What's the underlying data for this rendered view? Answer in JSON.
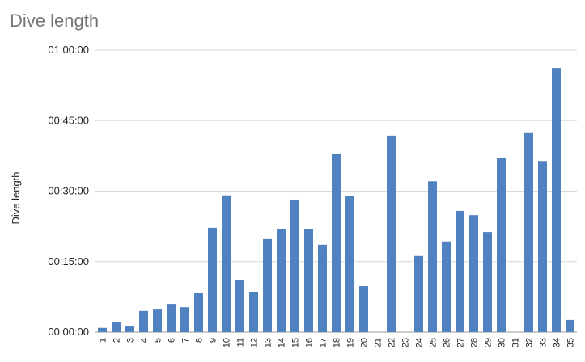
{
  "chart_data": {
    "type": "bar",
    "title": "Dive length",
    "y_label": "Dive length",
    "categories": [
      "1",
      "2",
      "3",
      "4",
      "5",
      "6",
      "7",
      "8",
      "9",
      "10",
      "11",
      "12",
      "13",
      "14",
      "15",
      "16",
      "17",
      "18",
      "19",
      "20",
      "21",
      "22",
      "23",
      "24",
      "25",
      "26",
      "27",
      "28",
      "29",
      "30",
      "31",
      "32",
      "33",
      "34",
      "35"
    ],
    "values": [
      0.9,
      2.2,
      1.2,
      4.5,
      4.8,
      6.0,
      5.3,
      8.4,
      22.2,
      29.1,
      11.0,
      8.6,
      19.8,
      22.0,
      28.2,
      22.0,
      18.6,
      38.0,
      28.9,
      9.8,
      null,
      41.8,
      null,
      16.2,
      32.1,
      19.3,
      25.8,
      24.9,
      21.3,
      37.1,
      null,
      42.5,
      36.4,
      56.2,
      2.6
    ],
    "color": "#5081c0",
    "ylim": [
      0,
      60
    ],
    "yticks": [
      {
        "value": 0,
        "label": "00:00:00"
      },
      {
        "value": 15,
        "label": "00:15:00"
      },
      {
        "value": 30,
        "label": "00:30:00"
      },
      {
        "value": 45,
        "label": "00:45:00"
      },
      {
        "value": 60,
        "label": "01:00:00"
      }
    ],
    "grid": true
  }
}
